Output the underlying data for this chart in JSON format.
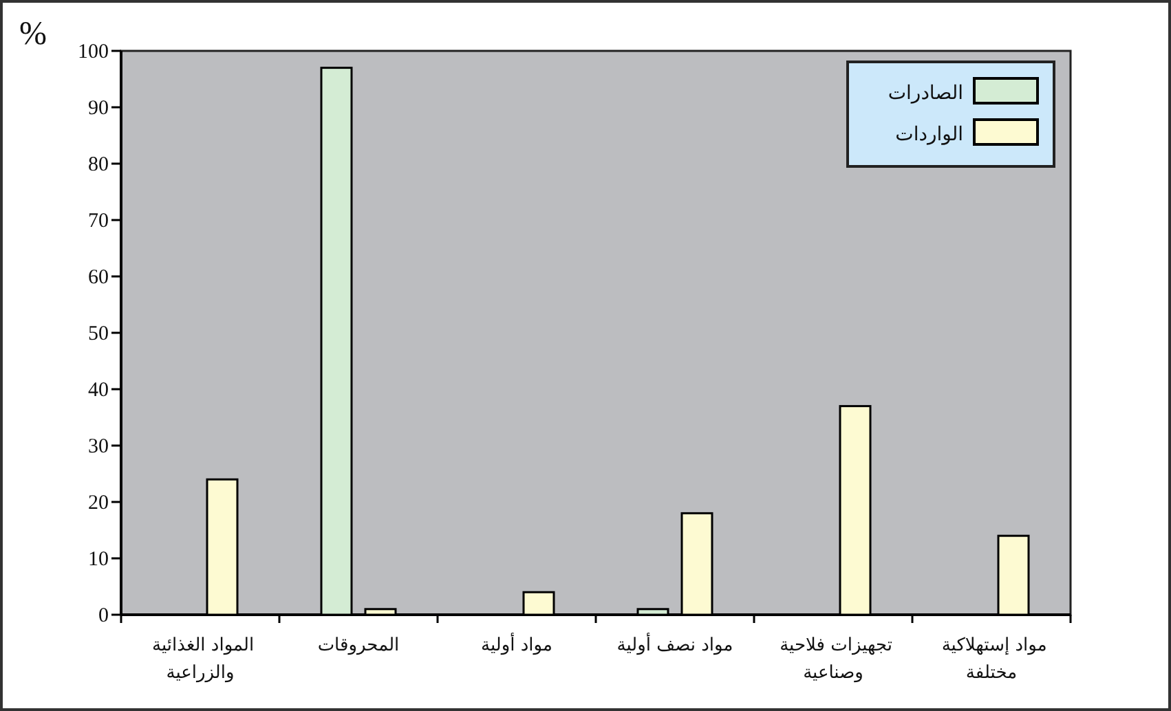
{
  "chart_data": {
    "type": "bar",
    "ylabel": "%",
    "categories": [
      "المواد الغذائية والزراعية",
      "المحروقات",
      "مواد أولية",
      "مواد نصف أولية",
      "تجهيزات فلاحية وصناعية",
      "مواد إستهلاكية مختلفة"
    ],
    "series": [
      {
        "name": "الصادرات",
        "color": "#d4ecd4",
        "values": [
          0,
          97,
          0,
          1,
          0,
          0
        ]
      },
      {
        "name": "الواردات",
        "color": "#fdfad2",
        "values": [
          24,
          1,
          4,
          18,
          37,
          14
        ]
      }
    ],
    "ylim": [
      0,
      100
    ],
    "yticks": [
      0,
      10,
      20,
      30,
      40,
      50,
      60,
      70,
      80,
      90,
      100
    ],
    "grid": false,
    "legend": "top right"
  }
}
